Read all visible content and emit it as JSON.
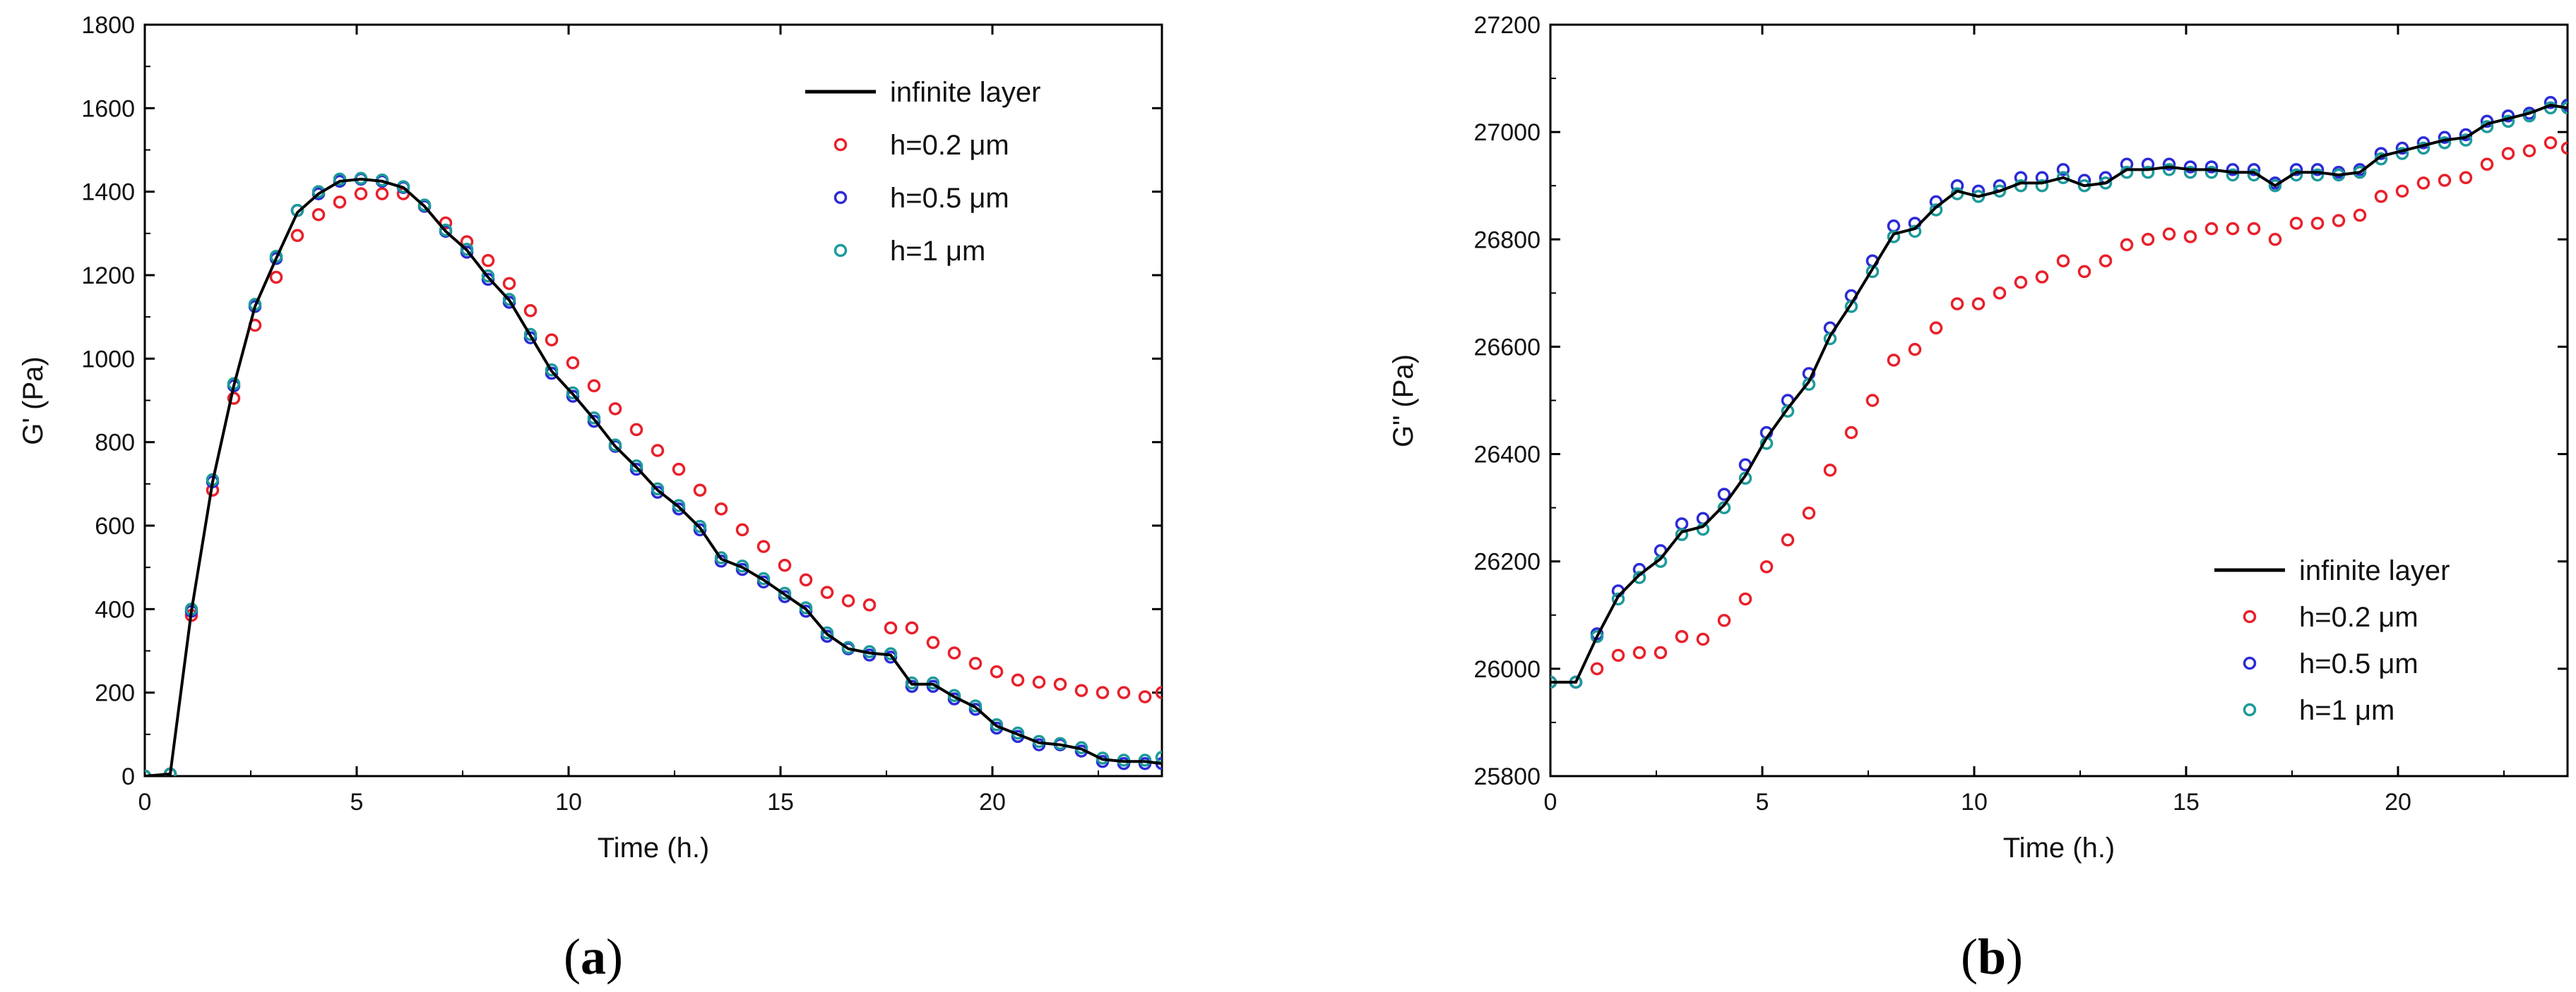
{
  "chart_data": [
    {
      "type": "line",
      "panel_label": "(a)",
      "panel_letter": "a",
      "xlabel": "Time (h.)",
      "ylabel": "G' (Pa)",
      "xlim": [
        0,
        24
      ],
      "ylim": [
        0,
        1800
      ],
      "xticks": [
        0,
        5,
        10,
        15,
        20
      ],
      "yticks": [
        0,
        200,
        400,
        600,
        800,
        1000,
        1200,
        1400,
        1600,
        1800
      ],
      "legend_position": "top-right",
      "x": [
        0,
        0.6,
        1.1,
        1.6,
        2.1,
        2.6,
        3.1,
        3.6,
        4.1,
        4.6,
        5.1,
        5.6,
        6.1,
        6.6,
        7.1,
        7.6,
        8.1,
        8.6,
        9.1,
        9.6,
        10.1,
        10.6,
        11.1,
        11.6,
        12.1,
        12.6,
        13.1,
        13.6,
        14.1,
        14.6,
        15.1,
        15.6,
        16.1,
        16.6,
        17.1,
        17.6,
        18.1,
        18.6,
        19.1,
        19.6,
        20.1,
        20.6,
        21.1,
        21.6,
        22.1,
        22.6,
        23.1,
        23.6,
        24
      ],
      "series": [
        {
          "name": "infinite layer",
          "style": "line",
          "color": "#000000",
          "values": [
            0,
            5,
            395,
            705,
            935,
            1125,
            1240,
            1350,
            1395,
            1425,
            1430,
            1425,
            1410,
            1365,
            1305,
            1260,
            1195,
            1140,
            1055,
            970,
            915,
            855,
            790,
            740,
            685,
            645,
            595,
            520,
            500,
            470,
            435,
            400,
            340,
            305,
            295,
            290,
            220,
            220,
            190,
            165,
            120,
            100,
            80,
            75,
            65,
            40,
            35,
            35,
            30
          ]
        },
        {
          "name": "h=0.2 μm",
          "style": "marker",
          "color": "#e8202a",
          "values": [
            0,
            5,
            385,
            685,
            905,
            1080,
            1195,
            1295,
            1345,
            1375,
            1395,
            1395,
            1395,
            1365,
            1325,
            1280,
            1235,
            1180,
            1115,
            1045,
            990,
            935,
            880,
            830,
            780,
            735,
            685,
            640,
            590,
            550,
            505,
            470,
            440,
            420,
            410,
            355,
            355,
            320,
            295,
            270,
            250,
            230,
            225,
            220,
            205,
            200,
            200,
            190,
            200
          ]
        },
        {
          "name": "h=0.5 μm",
          "style": "marker",
          "color": "#2b2bd6",
          "values": [
            0,
            5,
            395,
            705,
            935,
            1125,
            1240,
            1355,
            1395,
            1425,
            1430,
            1425,
            1410,
            1365,
            1305,
            1255,
            1190,
            1135,
            1050,
            965,
            910,
            850,
            790,
            735,
            680,
            640,
            590,
            515,
            495,
            465,
            430,
            395,
            335,
            305,
            290,
            285,
            215,
            215,
            185,
            160,
            115,
            95,
            75,
            75,
            60,
            35,
            30,
            30,
            30
          ]
        },
        {
          "name": "h=1 μm",
          "style": "marker",
          "color": "#1d9a9a",
          "values": [
            0,
            5,
            400,
            710,
            940,
            1130,
            1245,
            1355,
            1400,
            1430,
            1432,
            1428,
            1412,
            1368,
            1308,
            1262,
            1198,
            1142,
            1058,
            973,
            918,
            858,
            793,
            743,
            688,
            648,
            598,
            523,
            503,
            473,
            438,
            403,
            343,
            308,
            298,
            293,
            223,
            223,
            193,
            168,
            123,
            103,
            83,
            78,
            68,
            43,
            38,
            38,
            45
          ]
        }
      ]
    },
    {
      "type": "line",
      "panel_label": "(b)",
      "panel_letter": "b",
      "xlabel": "Time (h.)",
      "ylabel": "G\" (Pa)",
      "xlim": [
        0,
        24
      ],
      "ylim": [
        25800,
        27200
      ],
      "xticks": [
        0,
        5,
        10,
        15,
        20
      ],
      "yticks": [
        25800,
        26000,
        26200,
        26400,
        26600,
        26800,
        27000,
        27200
      ],
      "legend_position": "bottom-right",
      "x": [
        0,
        0.6,
        1.1,
        1.6,
        2.1,
        2.6,
        3.1,
        3.6,
        4.1,
        4.6,
        5.1,
        5.6,
        6.1,
        6.6,
        7.1,
        7.6,
        8.1,
        8.6,
        9.1,
        9.6,
        10.1,
        10.6,
        11.1,
        11.6,
        12.1,
        12.6,
        13.1,
        13.6,
        14.1,
        14.6,
        15.1,
        15.6,
        16.1,
        16.6,
        17.1,
        17.6,
        18.1,
        18.6,
        19.1,
        19.6,
        20.1,
        20.6,
        21.1,
        21.6,
        22.1,
        22.6,
        23.1,
        23.6,
        24
      ],
      "series": [
        {
          "name": "infinite layer",
          "style": "line",
          "color": "#000000",
          "values": [
            25975,
            25975,
            26060,
            26135,
            26175,
            26205,
            26255,
            26265,
            26305,
            26360,
            26430,
            26485,
            26535,
            26620,
            26680,
            26745,
            26810,
            26820,
            26860,
            26890,
            26880,
            26890,
            26905,
            26905,
            26915,
            26900,
            26905,
            26930,
            26930,
            26935,
            26930,
            26930,
            26925,
            26925,
            26900,
            26925,
            26925,
            26920,
            26925,
            26955,
            26965,
            26975,
            26985,
            26990,
            27015,
            27025,
            27035,
            27050,
            27045
          ]
        },
        {
          "name": "h=0.2 μm",
          "style": "marker",
          "color": "#e8202a",
          "values": [
            25975,
            25975,
            26000,
            26025,
            26030,
            26030,
            26060,
            26055,
            26090,
            26130,
            26190,
            26240,
            26290,
            26370,
            26440,
            26500,
            26575,
            26595,
            26635,
            26680,
            26680,
            26700,
            26720,
            26730,
            26760,
            26740,
            26760,
            26790,
            26800,
            26810,
            26805,
            26820,
            26820,
            26820,
            26800,
            26830,
            26830,
            26835,
            26845,
            26880,
            26890,
            26905,
            26910,
            26915,
            26940,
            26960,
            26965,
            26980,
            26970
          ]
        },
        {
          "name": "h=0.5 μm",
          "style": "marker",
          "color": "#2b2bd6",
          "values": [
            25975,
            25975,
            26065,
            26145,
            26185,
            26220,
            26270,
            26280,
            26325,
            26380,
            26440,
            26500,
            26550,
            26635,
            26695,
            26760,
            26825,
            26830,
            26870,
            26900,
            26890,
            26900,
            26915,
            26915,
            26930,
            26910,
            26915,
            26940,
            26940,
            26940,
            26935,
            26935,
            26930,
            26930,
            26905,
            26930,
            26930,
            26925,
            26930,
            26960,
            26970,
            26980,
            26990,
            26995,
            27020,
            27030,
            27035,
            27055,
            27050
          ]
        },
        {
          "name": "h=1 μm",
          "style": "marker",
          "color": "#1d9a9a",
          "values": [
            25975,
            25975,
            26060,
            26130,
            26170,
            26200,
            26250,
            26260,
            26300,
            26355,
            26420,
            26480,
            26530,
            26615,
            26675,
            26740,
            26805,
            26815,
            26855,
            26885,
            26880,
            26890,
            26900,
            26900,
            26915,
            26900,
            26905,
            26925,
            26925,
            26930,
            26925,
            26925,
            26920,
            26920,
            26900,
            26920,
            26920,
            26920,
            26925,
            26950,
            26960,
            26970,
            26980,
            26985,
            27010,
            27020,
            27030,
            27045,
            27045
          ]
        }
      ]
    }
  ]
}
